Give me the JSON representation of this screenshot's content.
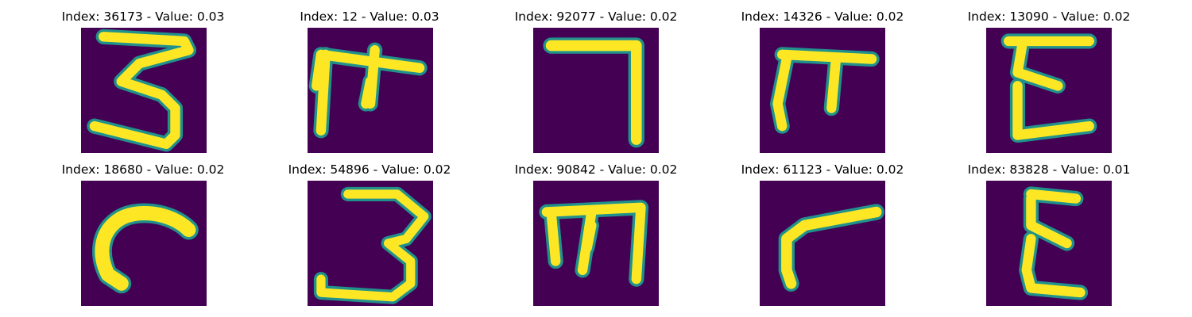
{
  "background_color": "#440154",
  "stroke_color": "#fde725",
  "edge_color": "#21918c",
  "panels": [
    {
      "title": "Index: 36173 - Value: 0.03",
      "glyph": "3",
      "description": "handwritten character resembling a 3 with flat top"
    },
    {
      "title": "Index: 12 - Value: 0.03",
      "glyph": "m",
      "description": "handwritten character resembling a cursive m"
    },
    {
      "title": "Index: 92077 - Value: 0.02",
      "glyph": "7",
      "description": "handwritten character resembling a 7"
    },
    {
      "title": "Index: 14326 - Value: 0.02",
      "glyph": "pi",
      "description": "handwritten character resembling pi"
    },
    {
      "title": "Index: 13090 - Value: 0.02",
      "glyph": "E",
      "description": "handwritten character resembling an epsilon/E"
    },
    {
      "title": "Index: 18680 - Value: 0.02",
      "glyph": "c",
      "description": "handwritten character resembling a curved c"
    },
    {
      "title": "Index: 54896 - Value: 0.02",
      "glyph": "3",
      "description": "handwritten character resembling a 3"
    },
    {
      "title": "Index: 90842 - Value: 0.02",
      "glyph": "m",
      "description": "handwritten character resembling an m"
    },
    {
      "title": "Index: 61123 - Value: 0.02",
      "glyph": "r",
      "description": "handwritten character resembling an r"
    },
    {
      "title": "Index: 83828 - Value: 0.01",
      "glyph": "E",
      "description": "handwritten character resembling an epsilon/E"
    }
  ]
}
